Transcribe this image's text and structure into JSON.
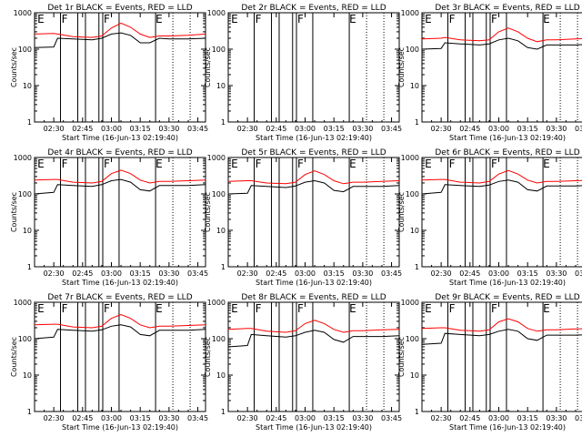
{
  "figure": {
    "x_tick_labels": [
      "02:30",
      "02:45",
      "03:00",
      "03:15",
      "03:30",
      "03:45"
    ],
    "y_tick_labels": [
      "1",
      "10",
      "100",
      "1000"
    ],
    "xlabel": "Start Time (16-Jun-13 02:19:40)",
    "ylabel": "Counts/sec",
    "segment_flags": [
      "E",
      "F",
      "F",
      "E"
    ],
    "colors": {
      "events": "#000000",
      "lld": "#ff0000",
      "axes": "#000000"
    }
  },
  "chart_data": [
    {
      "type": "line",
      "title": "Det 1r BLACK = Events, RED = LLD",
      "ylog": true,
      "ylim": [
        1,
        1000
      ],
      "xlim_minutes": [
        0,
        89
      ],
      "x_minutes": [
        0,
        10,
        12,
        20,
        30,
        35,
        40,
        45,
        50,
        55,
        60,
        65,
        70,
        80,
        89
      ],
      "series": [
        {
          "name": "Events",
          "values": [
            110,
            115,
            200,
            190,
            180,
            200,
            260,
            280,
            240,
            150,
            150,
            200,
            190,
            190,
            200
          ]
        },
        {
          "name": "LLD",
          "values": [
            260,
            270,
            260,
            220,
            210,
            230,
            380,
            520,
            400,
            260,
            210,
            230,
            230,
            240,
            260
          ]
        }
      ]
    },
    {
      "type": "line",
      "title": "Det 2r BLACK = Events, RED = LLD",
      "ylog": true,
      "ylim": [
        1,
        1000
      ],
      "xlim_minutes": [
        0,
        89
      ],
      "x_minutes": [],
      "series": [
        {
          "name": "Events",
          "values": []
        },
        {
          "name": "LLD",
          "values": []
        }
      ]
    },
    {
      "type": "line",
      "title": "Det 3r BLACK = Events, RED = LLD",
      "ylog": true,
      "ylim": [
        1,
        1000
      ],
      "xlim_minutes": [
        0,
        89
      ],
      "x_minutes": [
        0,
        10,
        12,
        20,
        30,
        35,
        40,
        45,
        50,
        55,
        60,
        65,
        70,
        80,
        89
      ],
      "series": [
        {
          "name": "Events",
          "values": [
            100,
            105,
            150,
            140,
            130,
            140,
            180,
            200,
            170,
            110,
            100,
            130,
            130,
            130,
            140
          ]
        },
        {
          "name": "LLD",
          "values": [
            190,
            200,
            210,
            180,
            170,
            180,
            300,
            380,
            300,
            200,
            160,
            180,
            180,
            190,
            200
          ]
        }
      ]
    },
    {
      "type": "line",
      "title": "Det 4r BLACK = Events, RED = LLD",
      "ylog": true,
      "ylim": [
        1,
        1000
      ],
      "xlim_minutes": [
        0,
        89
      ],
      "x_minutes": [
        0,
        10,
        12,
        20,
        30,
        35,
        40,
        45,
        50,
        55,
        60,
        65,
        70,
        80,
        89
      ],
      "series": [
        {
          "name": "Events",
          "values": [
            100,
            110,
            180,
            170,
            160,
            180,
            230,
            250,
            210,
            130,
            120,
            170,
            170,
            170,
            180
          ]
        },
        {
          "name": "LLD",
          "values": [
            240,
            250,
            250,
            210,
            200,
            220,
            360,
            450,
            360,
            240,
            200,
            220,
            220,
            230,
            240
          ]
        }
      ]
    },
    {
      "type": "line",
      "title": "Det 5r BLACK = Events, RED = LLD",
      "ylog": true,
      "ylim": [
        1,
        1000
      ],
      "xlim_minutes": [
        0,
        89
      ],
      "x_minutes": [
        0,
        10,
        12,
        20,
        30,
        35,
        40,
        45,
        50,
        55,
        60,
        65,
        70,
        80,
        89
      ],
      "series": [
        {
          "name": "Events",
          "values": [
            100,
            105,
            170,
            160,
            150,
            165,
            210,
            230,
            200,
            125,
            115,
            160,
            160,
            160,
            170
          ]
        },
        {
          "name": "LLD",
          "values": [
            220,
            230,
            230,
            200,
            190,
            210,
            340,
            430,
            340,
            230,
            190,
            210,
            210,
            220,
            230
          ]
        }
      ]
    },
    {
      "type": "line",
      "title": "Det 6r BLACK = Events, RED = LLD",
      "ylog": true,
      "ylim": [
        1,
        1000
      ],
      "xlim_minutes": [
        0,
        89
      ],
      "x_minutes": [
        0,
        10,
        12,
        20,
        30,
        35,
        40,
        45,
        50,
        55,
        60,
        65,
        70,
        80,
        89
      ],
      "series": [
        {
          "name": "Events",
          "values": [
            100,
            110,
            180,
            170,
            160,
            175,
            220,
            240,
            210,
            130,
            120,
            165,
            165,
            165,
            175
          ]
        },
        {
          "name": "LLD",
          "values": [
            240,
            250,
            250,
            210,
            200,
            220,
            350,
            440,
            350,
            240,
            200,
            220,
            220,
            230,
            240
          ]
        }
      ]
    },
    {
      "type": "line",
      "title": "Det 7r BLACK = Events, RED = LLD",
      "ylog": true,
      "ylim": [
        1,
        1000
      ],
      "xlim_minutes": [
        0,
        89
      ],
      "x_minutes": [
        0,
        10,
        12,
        20,
        30,
        35,
        40,
        45,
        50,
        55,
        60,
        65,
        70,
        80,
        89
      ],
      "series": [
        {
          "name": "Events",
          "values": [
            100,
            110,
            180,
            170,
            160,
            175,
            220,
            240,
            210,
            130,
            120,
            170,
            170,
            170,
            180
          ]
        },
        {
          "name": "LLD",
          "values": [
            240,
            250,
            250,
            210,
            200,
            220,
            360,
            460,
            360,
            240,
            200,
            220,
            220,
            230,
            240
          ]
        }
      ]
    },
    {
      "type": "line",
      "title": "Det 8r BLACK = Events, RED = LLD",
      "ylog": true,
      "ylim": [
        1,
        1000
      ],
      "xlim_minutes": [
        0,
        89
      ],
      "x_minutes": [
        0,
        10,
        12,
        20,
        30,
        35,
        40,
        45,
        50,
        55,
        60,
        65,
        70,
        80,
        89
      ],
      "series": [
        {
          "name": "Events",
          "values": [
            60,
            65,
            130,
            120,
            110,
            120,
            150,
            170,
            150,
            95,
            80,
            115,
            115,
            115,
            120
          ]
        },
        {
          "name": "LLD",
          "values": [
            180,
            190,
            190,
            160,
            150,
            165,
            260,
            320,
            260,
            180,
            150,
            165,
            165,
            175,
            180
          ]
        }
      ]
    },
    {
      "type": "line",
      "title": "Det 9r BLACK = Events, RED = LLD",
      "ylog": true,
      "ylim": [
        1,
        1000
      ],
      "xlim_minutes": [
        0,
        89
      ],
      "x_minutes": [
        0,
        10,
        12,
        20,
        30,
        35,
        40,
        45,
        50,
        55,
        60,
        65,
        70,
        80,
        89
      ],
      "series": [
        {
          "name": "Events",
          "values": [
            70,
            75,
            140,
            130,
            120,
            130,
            160,
            180,
            160,
            100,
            90,
            125,
            125,
            125,
            130
          ]
        },
        {
          "name": "LLD",
          "values": [
            190,
            200,
            200,
            170,
            160,
            175,
            290,
            350,
            290,
            190,
            160,
            175,
            175,
            185,
            190
          ]
        }
      ]
    }
  ]
}
